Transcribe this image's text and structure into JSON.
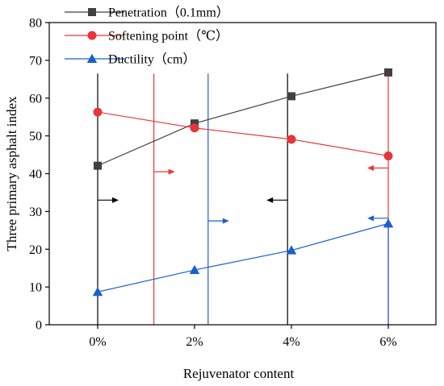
{
  "chart_data": {
    "type": "line",
    "xlabel": "Rejuvenator content",
    "ylabel": "Three primary asphalt index",
    "categories": [
      "0%",
      "2%",
      "4%",
      "6%"
    ],
    "ylim": [
      0,
      80
    ],
    "yticks": [
      0,
      10,
      20,
      30,
      40,
      50,
      60,
      70,
      80
    ],
    "grid": false,
    "legend_position": "top-left",
    "series": [
      {
        "name": "Penetration（0.1mm）",
        "values": [
          42.1,
          53.3,
          60.5,
          66.8
        ],
        "color": "#404040",
        "marker": "square"
      },
      {
        "name": "Softening point（℃）",
        "values": [
          56.3,
          52.1,
          49.1,
          44.7
        ],
        "color": "#e8353a",
        "marker": "circle"
      },
      {
        "name": "Ductility（cm）",
        "values": [
          8.7,
          14.5,
          19.7,
          26.8
        ],
        "color": "#1a5fd0",
        "marker": "triangle"
      }
    ],
    "reference_lines": [
      {
        "x_index": 0.0,
        "ymax": 66.5,
        "color": "#000000",
        "arrow_dir": "right",
        "arrow_y": 33
      },
      {
        "x_index": 0.58,
        "ymax": 66.5,
        "color": "#e8353a",
        "arrow_dir": "right",
        "arrow_y": 40.5
      },
      {
        "x_index": 1.14,
        "ymax": 66.5,
        "color": "#1a5fd0",
        "arrow_dir": "right",
        "arrow_y": 27.5
      },
      {
        "x_index": 1.96,
        "ymax": 66.5,
        "color": "#000000",
        "arrow_dir": "left",
        "arrow_y": 33
      },
      {
        "x_index": 3.0,
        "ymax": 66.5,
        "color": "#e8353a",
        "arrow_dir": "left",
        "arrow_y": 41.5
      },
      {
        "x_index": 3.0,
        "ymax": 28.2,
        "color": "#1a5fd0",
        "arrow_dir": "left",
        "arrow_y": 28.2
      }
    ]
  }
}
